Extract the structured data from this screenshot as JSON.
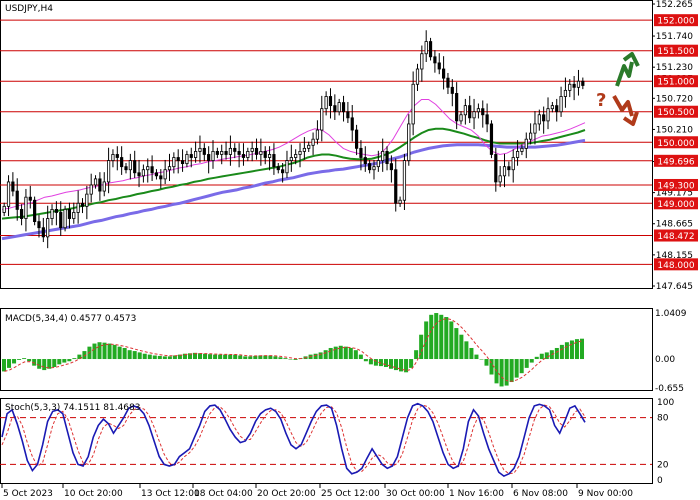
{
  "window": {
    "title": "USDJPY,H4"
  },
  "colors": {
    "bull_body": "#ffffff",
    "bear_body": "#000000",
    "wick": "#000000",
    "ma_fast": "#e040e0",
    "ma_mid": "#1a8a1a",
    "ma_slow": "#7a6be8",
    "level_line": "#cc0000",
    "level_tag_bg": "#dd1111",
    "macd_hist": "#22aa22",
    "macd_signal": "#dd3333",
    "stoch_main": "#1a1ab4",
    "stoch_signal": "#dd3333",
    "arrow_up": "#2a7a2a",
    "arrow_down": "#b03a1a",
    "question_mark": "#b03a1a",
    "grid": "#000000"
  },
  "chart_data": [
    {
      "type": "candlestick",
      "title": "USDJPY,H4",
      "ylim": [
        147.645,
        152.265
      ],
      "price_ticks": [
        "152.265",
        "151.740",
        "151.230",
        "150.720",
        "150.210",
        "149.685",
        "149.175",
        "148.665",
        "148.155",
        "147.645"
      ],
      "current_price": "150.927",
      "levels": [
        "152.000",
        "151.500",
        "151.000",
        "150.500",
        "150.000",
        "149.696",
        "149.300",
        "149.000",
        "148.472",
        "148.000"
      ],
      "x_ticks": [
        "5 Oct 2023",
        "10 Oct 20:00",
        "13 Oct 12:00",
        "18 Oct 04:00",
        "20 Oct 20:00",
        "25 Oct 12:00",
        "30 Oct 00:00",
        "1 Nov 16:00",
        "6 Nov 08:00",
        "9 Nov 00:00"
      ],
      "closes": [
        148.95,
        149.35,
        149.2,
        148.9,
        148.75,
        149.1,
        149.05,
        148.7,
        148.6,
        148.45,
        148.75,
        148.9,
        148.85,
        148.6,
        148.9,
        148.75,
        148.85,
        149.0,
        148.95,
        149.15,
        149.3,
        149.4,
        149.2,
        149.35,
        149.7,
        149.8,
        149.75,
        149.6,
        149.55,
        149.7,
        149.5,
        149.45,
        149.55,
        149.6,
        149.5,
        149.45,
        149.4,
        149.55,
        149.6,
        149.75,
        149.7,
        149.65,
        149.8,
        149.75,
        149.85,
        149.9,
        149.8,
        149.7,
        149.85,
        149.8,
        149.85,
        149.8,
        149.9,
        149.85,
        149.8,
        149.75,
        149.85,
        149.9,
        149.8,
        149.85,
        149.75,
        149.8,
        149.6,
        149.55,
        149.5,
        149.7,
        149.75,
        149.8,
        149.85,
        149.9,
        149.95,
        150.05,
        150.2,
        150.55,
        150.75,
        150.6,
        150.5,
        150.65,
        150.5,
        150.4,
        150.2,
        149.9,
        149.75,
        149.65,
        149.55,
        149.6,
        149.7,
        149.85,
        149.65,
        149.55,
        149.0,
        149.05,
        149.7,
        150.3,
        150.95,
        151.2,
        151.45,
        151.65,
        151.4,
        151.3,
        151.2,
        151.05,
        150.9,
        150.8,
        150.35,
        150.45,
        150.6,
        150.4,
        150.5,
        150.55,
        150.45,
        150.3,
        149.8,
        149.35,
        149.45,
        149.6,
        149.55,
        149.75,
        149.85,
        149.9,
        150.05,
        150.15,
        150.3,
        150.45,
        150.35,
        150.55,
        150.6,
        150.5,
        150.75,
        150.85,
        150.95,
        150.9,
        151.0,
        150.93
      ],
      "ma_fast_values": [
        148.9,
        148.92,
        148.95,
        148.98,
        149.0,
        149.05,
        149.1,
        149.12,
        149.15,
        149.18,
        149.2,
        149.22,
        149.25,
        149.27,
        149.3,
        149.33,
        149.35,
        149.37,
        149.4,
        149.42,
        149.45,
        149.47,
        149.5,
        149.52,
        149.55,
        149.58,
        149.6,
        149.63,
        149.65,
        149.68,
        149.7,
        149.72,
        149.74,
        149.76,
        149.78,
        149.8,
        149.82,
        149.85,
        149.88,
        149.92,
        149.98,
        150.05,
        150.12,
        150.18,
        150.22,
        150.2,
        150.12,
        150.0,
        149.9,
        149.85,
        149.82,
        149.8,
        149.78,
        149.8,
        149.9,
        150.05,
        150.25,
        150.45,
        150.6,
        150.7,
        150.7,
        150.62,
        150.5,
        150.38,
        150.3,
        150.25,
        150.2,
        150.1,
        149.95,
        149.85,
        149.8,
        149.82,
        149.88,
        149.95,
        150.0,
        150.05,
        150.1,
        150.12,
        150.15,
        150.18,
        150.22,
        150.27,
        150.32
      ],
      "ma_mid_values": [
        148.75,
        148.76,
        148.77,
        148.78,
        148.8,
        148.82,
        148.84,
        148.86,
        148.88,
        148.9,
        148.92,
        148.95,
        148.97,
        149.0,
        149.02,
        149.05,
        149.07,
        149.1,
        149.12,
        149.15,
        149.17,
        149.2,
        149.22,
        149.25,
        149.27,
        149.3,
        149.32,
        149.35,
        149.37,
        149.4,
        149.42,
        149.44,
        149.46,
        149.48,
        149.5,
        149.52,
        149.54,
        149.56,
        149.58,
        149.6,
        149.63,
        149.66,
        149.7,
        149.75,
        149.78,
        149.8,
        149.8,
        149.78,
        149.75,
        149.73,
        149.72,
        149.72,
        149.73,
        149.76,
        149.8,
        149.85,
        149.92,
        150.0,
        150.08,
        150.15,
        150.2,
        150.22,
        150.22,
        150.2,
        150.17,
        150.14,
        150.1,
        150.07,
        150.03,
        150.0,
        149.98,
        149.98,
        149.98,
        149.98,
        149.98,
        150.0,
        150.02,
        150.04,
        150.07,
        150.1,
        150.13,
        150.16,
        150.2
      ],
      "ma_slow_values": [
        148.42,
        148.44,
        148.46,
        148.48,
        148.5,
        148.52,
        148.54,
        148.56,
        148.58,
        148.6,
        148.62,
        148.64,
        148.67,
        148.7,
        148.72,
        148.75,
        148.78,
        148.8,
        148.83,
        148.85,
        148.88,
        148.9,
        148.93,
        148.95,
        148.98,
        149.0,
        149.03,
        149.06,
        149.09,
        149.12,
        149.15,
        149.18,
        149.2,
        149.22,
        149.25,
        149.27,
        149.3,
        149.33,
        149.35,
        149.38,
        149.4,
        149.42,
        149.45,
        149.48,
        149.5,
        149.52,
        149.53,
        149.55,
        149.56,
        149.58,
        149.6,
        149.62,
        149.64,
        149.66,
        149.7,
        149.73,
        149.76,
        149.8,
        149.84,
        149.87,
        149.9,
        149.92,
        149.94,
        149.95,
        149.96,
        149.96,
        149.96,
        149.96,
        149.95,
        149.94,
        149.93,
        149.92,
        149.92,
        149.92,
        149.92,
        149.92,
        149.93,
        149.94,
        149.95,
        149.97,
        149.99,
        150.01,
        150.03
      ]
    },
    {
      "type": "bar",
      "title": "MACD(5,34,4) 0.4577 0.4573",
      "ylim": [
        -0.655,
        1.0409
      ],
      "ticks": [
        "1.0409",
        "0.00",
        "-0.655"
      ],
      "values": [
        -0.28,
        -0.2,
        -0.1,
        -0.02,
        0.02,
        -0.05,
        -0.15,
        -0.22,
        -0.25,
        -0.22,
        -0.18,
        -0.12,
        -0.08,
        -0.05,
        0.02,
        0.1,
        0.18,
        0.28,
        0.35,
        0.38,
        0.37,
        0.35,
        0.32,
        0.28,
        0.25,
        0.2,
        0.18,
        0.15,
        0.12,
        0.1,
        0.08,
        0.07,
        0.06,
        0.06,
        0.08,
        0.1,
        0.12,
        0.13,
        0.14,
        0.13,
        0.12,
        0.11,
        0.1,
        0.1,
        0.1,
        0.1,
        0.1,
        0.08,
        0.06,
        0.06,
        0.07,
        0.08,
        0.08,
        0.08,
        0.06,
        0.04,
        0.02,
        0.0,
        -0.02,
        0.02,
        0.06,
        0.1,
        0.12,
        0.15,
        0.2,
        0.25,
        0.28,
        0.3,
        0.28,
        0.25,
        0.2,
        0.1,
        -0.05,
        -0.12,
        -0.15,
        -0.16,
        -0.18,
        -0.22,
        -0.25,
        -0.28,
        -0.3,
        -0.2,
        0.2,
        0.55,
        0.85,
        1.0,
        1.04,
        1.0,
        0.95,
        0.85,
        0.7,
        0.55,
        0.4,
        0.25,
        0.1,
        0.0,
        -0.15,
        -0.35,
        -0.55,
        -0.62,
        -0.6,
        -0.52,
        -0.42,
        -0.32,
        -0.2,
        -0.08,
        0.05,
        0.12,
        0.15,
        0.2,
        0.25,
        0.32,
        0.38,
        0.42,
        0.45,
        0.46
      ]
    },
    {
      "type": "line",
      "title": "Stoch(5,3,3) 74.1511 81.4683",
      "ylim": [
        0,
        100
      ],
      "ticks": [
        "100",
        "80",
        "20",
        "0"
      ],
      "levels": [
        80,
        20
      ],
      "values": [
        55,
        85,
        90,
        72,
        50,
        25,
        12,
        20,
        45,
        75,
        88,
        90,
        85,
        60,
        35,
        20,
        18,
        30,
        55,
        70,
        78,
        72,
        60,
        70,
        80,
        92,
        95,
        92,
        85,
        70,
        50,
        30,
        20,
        18,
        20,
        30,
        35,
        40,
        55,
        70,
        88,
        95,
        96,
        90,
        78,
        65,
        55,
        48,
        50,
        60,
        75,
        85,
        90,
        92,
        88,
        78,
        60,
        45,
        40,
        45,
        60,
        75,
        88,
        95,
        96,
        92,
        70,
        40,
        15,
        8,
        10,
        15,
        28,
        40,
        30,
        20,
        15,
        18,
        30,
        55,
        80,
        95,
        98,
        95,
        88,
        75,
        55,
        35,
        20,
        15,
        18,
        40,
        75,
        90,
        82,
        60,
        40,
        25,
        10,
        5,
        8,
        15,
        30,
        55,
        80,
        95,
        97,
        95,
        90,
        70,
        60,
        75,
        92,
        95,
        85,
        74
      ],
      "signal_values": [
        45,
        60,
        80,
        82,
        70,
        48,
        30,
        18,
        22,
        45,
        70,
        85,
        88,
        78,
        58,
        38,
        22,
        20,
        32,
        52,
        68,
        73,
        70,
        66,
        70,
        82,
        90,
        93,
        91,
        83,
        68,
        50,
        33,
        22,
        19,
        23,
        30,
        35,
        43,
        55,
        71,
        85,
        93,
        94,
        88,
        78,
        66,
        56,
        51,
        52,
        62,
        73,
        83,
        89,
        90,
        86,
        75,
        61,
        48,
        43,
        48,
        60,
        74,
        86,
        93,
        94,
        86,
        67,
        42,
        21,
        11,
        11,
        18,
        28,
        33,
        30,
        22,
        18,
        21,
        34,
        55,
        77,
        91,
        96,
        94,
        86,
        73,
        55,
        37,
        23,
        17,
        24,
        44,
        68,
        82,
        77,
        61,
        42,
        25,
        13,
        8,
        9,
        18,
        33,
        55,
        77,
        91,
        96,
        94,
        85,
        73,
        68,
        76,
        87,
        91,
        81
      ]
    }
  ]
}
